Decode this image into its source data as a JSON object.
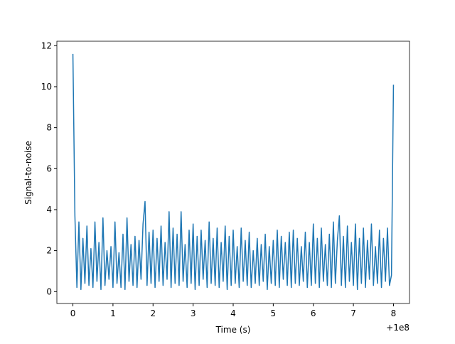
{
  "chart_data": {
    "type": "line",
    "xlabel": "Time (s)",
    "ylabel": "Signal-to-noise",
    "x_offset_label": "+1e8",
    "xlim": [
      -0.4,
      8.4
    ],
    "ylim": [
      -0.58,
      12.22
    ],
    "xticks": [
      0,
      1,
      2,
      3,
      4,
      5,
      6,
      7,
      8
    ],
    "yticks": [
      0,
      2,
      4,
      6,
      8,
      10,
      12
    ],
    "x": [
      0,
      0.05,
      0.1,
      0.15,
      0.2,
      0.25,
      0.3,
      0.35,
      0.4,
      0.45,
      0.5,
      0.55,
      0.6,
      0.65,
      0.7,
      0.75,
      0.8,
      0.85,
      0.9,
      0.95,
      1,
      1.05,
      1.1,
      1.15,
      1.2,
      1.25,
      1.3,
      1.35,
      1.4,
      1.45,
      1.5,
      1.55,
      1.6,
      1.65,
      1.7,
      1.75,
      1.8,
      1.85,
      1.9,
      1.95,
      2,
      2.05,
      2.1,
      2.15,
      2.2,
      2.25,
      2.3,
      2.35,
      2.4,
      2.45,
      2.5,
      2.55,
      2.6,
      2.65,
      2.7,
      2.75,
      2.8,
      2.85,
      2.9,
      2.95,
      3,
      3.05,
      3.1,
      3.15,
      3.2,
      3.25,
      3.3,
      3.35,
      3.4,
      3.45,
      3.5,
      3.55,
      3.6,
      3.65,
      3.7,
      3.75,
      3.8,
      3.85,
      3.9,
      3.95,
      4,
      4.05,
      4.1,
      4.15,
      4.2,
      4.25,
      4.3,
      4.35,
      4.4,
      4.45,
      4.5,
      4.55,
      4.6,
      4.65,
      4.7,
      4.75,
      4.8,
      4.85,
      4.9,
      4.95,
      5,
      5.05,
      5.1,
      5.15,
      5.2,
      5.25,
      5.3,
      5.35,
      5.4,
      5.45,
      5.5,
      5.55,
      5.6,
      5.65,
      5.7,
      5.75,
      5.8,
      5.85,
      5.9,
      5.95,
      6,
      6.05,
      6.1,
      6.15,
      6.2,
      6.25,
      6.3,
      6.35,
      6.4,
      6.45,
      6.5,
      6.55,
      6.6,
      6.65,
      6.7,
      6.75,
      6.8,
      6.85,
      6.9,
      6.95,
      7,
      7.05,
      7.1,
      7.15,
      7.2,
      7.25,
      7.3,
      7.35,
      7.4,
      7.45,
      7.5,
      7.55,
      7.6,
      7.65,
      7.7,
      7.75,
      7.8,
      7.85,
      7.9,
      7.95,
      8
    ],
    "series": [
      {
        "color": "#1f77b4",
        "values": [
          11.6,
          3.7,
          0.2,
          3.4,
          0.1,
          2.6,
          0.4,
          3.2,
          0.3,
          2.1,
          0.2,
          3.4,
          0.5,
          2.4,
          0.1,
          3.6,
          0.3,
          2.0,
          0.6,
          2.2,
          0.2,
          3.4,
          0.4,
          1.9,
          0.2,
          2.8,
          0.1,
          3.6,
          0.5,
          2.3,
          0.3,
          2.7,
          0.2,
          2.5,
          0.6,
          3.3,
          4.4,
          0.3,
          2.9,
          0.4,
          3.0,
          0.2,
          2.6,
          0.5,
          3.2,
          0.3,
          2.4,
          0.6,
          3.9,
          0.2,
          3.1,
          0.4,
          2.8,
          0.3,
          3.9,
          0.5,
          2.3,
          0.2,
          3.0,
          0.4,
          3.3,
          0.1,
          2.7,
          0.3,
          3.0,
          0.6,
          2.5,
          0.2,
          3.4,
          0.4,
          2.6,
          0.3,
          3.1,
          0.2,
          2.4,
          0.5,
          3.2,
          0.1,
          2.7,
          0.3,
          3.0,
          0.4,
          2.2,
          0.2,
          3.1,
          0.5,
          2.5,
          0.3,
          2.9,
          0.2,
          2.0,
          0.4,
          2.6,
          0.3,
          2.3,
          0.5,
          2.8,
          0.1,
          2.2,
          0.4,
          2.5,
          0.3,
          3.0,
          0.2,
          2.7,
          0.6,
          2.4,
          0.3,
          2.9,
          0.2,
          3.0,
          0.4,
          2.6,
          0.3,
          2.2,
          0.5,
          2.9,
          0.2,
          2.4,
          0.3,
          3.3,
          0.4,
          2.6,
          0.2,
          3.1,
          0.5,
          2.3,
          0.3,
          2.8,
          0.2,
          3.4,
          0.4,
          2.5,
          3.7,
          0.3,
          2.7,
          0.2,
          3.2,
          0.5,
          2.4,
          0.3,
          3.3,
          0.1,
          2.6,
          0.4,
          3.1,
          0.2,
          2.5,
          0.6,
          3.3,
          0.3,
          2.2,
          0.4,
          3.0,
          0.2,
          2.6,
          0.5,
          3.1,
          0.3,
          0.8,
          10.1
        ]
      }
    ]
  }
}
